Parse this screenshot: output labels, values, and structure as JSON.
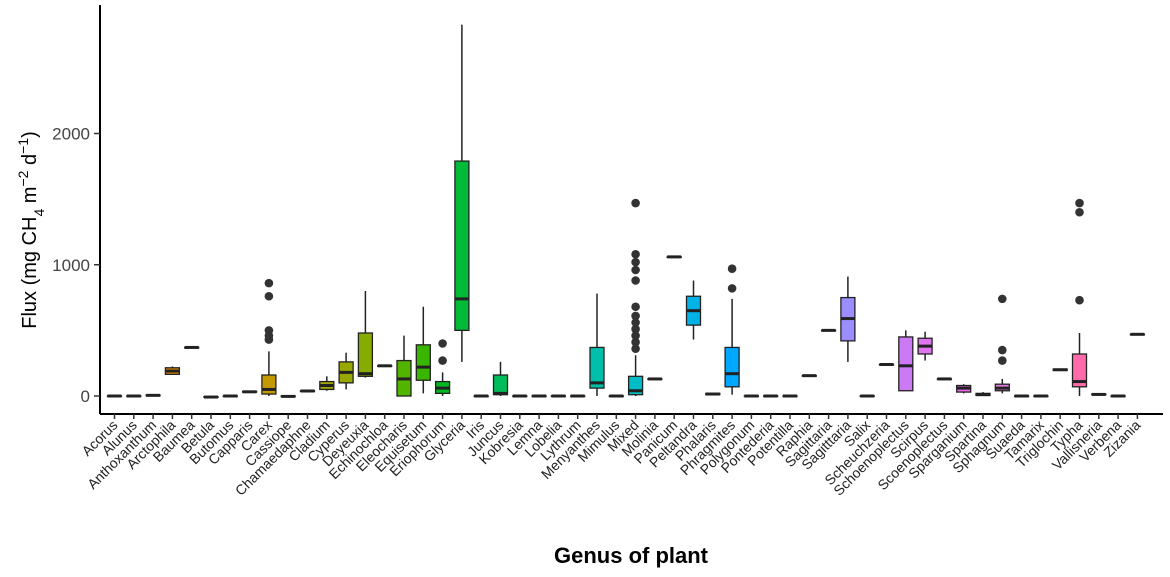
{
  "chart_data": {
    "type": "boxplot",
    "xlabel": "Genus of plant",
    "ylabel_parts": [
      "Flux (mg CH",
      "4",
      " m",
      "−2",
      " d",
      "−1",
      ")"
    ],
    "ylim": [
      -150,
      2900
    ],
    "yticks": [
      0,
      1000,
      2000
    ],
    "grid": false,
    "legend": "none",
    "boxes": [
      {
        "category": "Acorus",
        "min": 0,
        "q1": 0,
        "median": 0,
        "q3": 0,
        "max": 0,
        "outliers": [],
        "color": "#F8766D"
      },
      {
        "category": "Alunus",
        "min": 0,
        "q1": 0,
        "median": 0,
        "q3": 0,
        "max": 0,
        "outliers": [],
        "color": "#F27D52"
      },
      {
        "category": "Anthoxanthum",
        "min": 3,
        "q1": 3,
        "median": 5,
        "q3": 6,
        "max": 6,
        "outliers": [],
        "color": "#EA8331"
      },
      {
        "category": "Arctophila",
        "min": 160,
        "q1": 165,
        "median": 190,
        "q3": 215,
        "max": 225,
        "outliers": [],
        "color": "#E18A00"
      },
      {
        "category": "Baumea",
        "min": 370,
        "q1": 370,
        "median": 370,
        "q3": 370,
        "max": 370,
        "outliers": [],
        "color": "#D89000"
      },
      {
        "category": "Betula",
        "min": -10,
        "q1": -10,
        "median": -8,
        "q3": -5,
        "max": -5,
        "outliers": [],
        "color": "#CD9600"
      },
      {
        "category": "Butomus",
        "min": 0,
        "q1": 0,
        "median": 0,
        "q3": 0,
        "max": 0,
        "outliers": [],
        "color": "#C19C00"
      },
      {
        "category": "Capparis",
        "min": 30,
        "q1": 30,
        "median": 32,
        "q3": 35,
        "max": 35,
        "outliers": [],
        "color": "#B4A000"
      },
      {
        "category": "Carex",
        "min": 0,
        "q1": 15,
        "median": 50,
        "q3": 160,
        "max": 340,
        "outliers": [
          430,
          460,
          500,
          760,
          860
        ],
        "color": "#C49A00"
      },
      {
        "category": "Cassiope",
        "min": -5,
        "q1": -5,
        "median": -3,
        "q3": 0,
        "max": 0,
        "outliers": [],
        "color": "#A3A500"
      },
      {
        "category": "Chamaedaphne",
        "min": 35,
        "q1": 35,
        "median": 38,
        "q3": 40,
        "max": 40,
        "outliers": [],
        "color": "#95A900"
      },
      {
        "category": "Cladium",
        "min": 40,
        "q1": 50,
        "median": 80,
        "q3": 110,
        "max": 150,
        "outliers": [],
        "color": "#A3A500"
      },
      {
        "category": "Cyperus",
        "min": 50,
        "q1": 100,
        "median": 180,
        "q3": 260,
        "max": 330,
        "outliers": [],
        "color": "#99A800"
      },
      {
        "category": "Deyeuxia",
        "min": 140,
        "q1": 150,
        "median": 170,
        "q3": 480,
        "max": 800,
        "outliers": [],
        "color": "#86AC00"
      },
      {
        "category": "Echinochloa",
        "min": 230,
        "q1": 230,
        "median": 230,
        "q3": 230,
        "max": 230,
        "outliers": [],
        "color": "#6BB100"
      },
      {
        "category": "Eleocharis",
        "min": 0,
        "q1": 0,
        "median": 130,
        "q3": 270,
        "max": 460,
        "outliers": [],
        "color": "#53B400"
      },
      {
        "category": "Equisetum",
        "min": 20,
        "q1": 120,
        "median": 220,
        "q3": 390,
        "max": 680,
        "outliers": [],
        "color": "#39B600"
      },
      {
        "category": "Eriophorum",
        "min": 0,
        "q1": 20,
        "median": 60,
        "q3": 110,
        "max": 180,
        "outliers": [
          270,
          400
        ],
        "color": "#00B81F"
      },
      {
        "category": "Glyceria",
        "min": 260,
        "q1": 500,
        "median": 740,
        "q3": 1790,
        "max": 2830,
        "outliers": [],
        "color": "#00BA38"
      },
      {
        "category": "Iris",
        "min": 0,
        "q1": 0,
        "median": 0,
        "q3": 0,
        "max": 0,
        "outliers": [],
        "color": "#00BB4E"
      },
      {
        "category": "Juncus",
        "min": 0,
        "q1": 10,
        "median": 20,
        "q3": 160,
        "max": 260,
        "outliers": [],
        "color": "#00BC59"
      },
      {
        "category": "Kobresia",
        "min": 0,
        "q1": 0,
        "median": 0,
        "q3": 0,
        "max": 0,
        "outliers": [],
        "color": "#00BE6C"
      },
      {
        "category": "Lemna",
        "min": 0,
        "q1": 0,
        "median": 0,
        "q3": 0,
        "max": 0,
        "outliers": [],
        "color": "#00BF7D"
      },
      {
        "category": "Lobelia",
        "min": 0,
        "q1": 0,
        "median": 0,
        "q3": 0,
        "max": 0,
        "outliers": [],
        "color": "#00C08B"
      },
      {
        "category": "Lythrum",
        "min": 0,
        "q1": 0,
        "median": 0,
        "q3": 0,
        "max": 0,
        "outliers": [],
        "color": "#00C19A"
      },
      {
        "category": "Menyanthes",
        "min": 0,
        "q1": 60,
        "median": 100,
        "q3": 370,
        "max": 780,
        "outliers": [],
        "color": "#00BFAA"
      },
      {
        "category": "Mimulus",
        "min": 0,
        "q1": 0,
        "median": 0,
        "q3": 0,
        "max": 0,
        "outliers": [],
        "color": "#00BFB8"
      },
      {
        "category": "Mixed",
        "min": 0,
        "q1": 10,
        "median": 40,
        "q3": 150,
        "max": 310,
        "outliers": [
          360,
          410,
          460,
          510,
          560,
          610,
          680,
          880,
          960,
          1020,
          1080,
          1470
        ],
        "color": "#00BCC4"
      },
      {
        "category": "Molinia",
        "min": 130,
        "q1": 130,
        "median": 130,
        "q3": 130,
        "max": 130,
        "outliers": [],
        "color": "#00BAD0"
      },
      {
        "category": "Panicum",
        "min": 1060,
        "q1": 1060,
        "median": 1060,
        "q3": 1060,
        "max": 1060,
        "outliers": [],
        "color": "#00B6DB"
      },
      {
        "category": "Peltandra",
        "min": 430,
        "q1": 540,
        "median": 650,
        "q3": 760,
        "max": 880,
        "outliers": [],
        "color": "#00B2E5"
      },
      {
        "category": "Phalaris",
        "min": 10,
        "q1": 10,
        "median": 15,
        "q3": 20,
        "max": 20,
        "outliers": [],
        "color": "#00ADEE"
      },
      {
        "category": "Phragmites",
        "min": 10,
        "q1": 70,
        "median": 170,
        "q3": 370,
        "max": 740,
        "outliers": [
          820,
          970
        ],
        "color": "#00A9FF"
      },
      {
        "category": "Polygonum",
        "min": 0,
        "q1": 0,
        "median": 0,
        "q3": 0,
        "max": 0,
        "outliers": [],
        "color": "#29A3FF"
      },
      {
        "category": "Pontederia",
        "min": 0,
        "q1": 0,
        "median": 0,
        "q3": 0,
        "max": 0,
        "outliers": [],
        "color": "#619CFF"
      },
      {
        "category": "Potentilla",
        "min": 0,
        "q1": 0,
        "median": 0,
        "q3": 0,
        "max": 0,
        "outliers": [],
        "color": "#7F96FF"
      },
      {
        "category": "Raphia",
        "min": 155,
        "q1": 155,
        "median": 155,
        "q3": 155,
        "max": 155,
        "outliers": [],
        "color": "#9590FF"
      },
      {
        "category": "Sagittaria",
        "min": 500,
        "q1": 500,
        "median": 500,
        "q3": 500,
        "max": 500,
        "outliers": [],
        "color": "#A68AFF"
      },
      {
        "category": "Sagitttaria",
        "min": 260,
        "q1": 420,
        "median": 590,
        "q3": 750,
        "max": 910,
        "outliers": [],
        "color": "#9C8DFF"
      },
      {
        "category": "Salix",
        "min": 0,
        "q1": 0,
        "median": 0,
        "q3": 0,
        "max": 0,
        "outliers": [],
        "color": "#C77CFF"
      },
      {
        "category": "Scheuchzeria",
        "min": 240,
        "q1": 240,
        "median": 240,
        "q3": 240,
        "max": 240,
        "outliers": [],
        "color": "#D277FA"
      },
      {
        "category": "Schoenoplectus",
        "min": 40,
        "q1": 40,
        "median": 230,
        "q3": 450,
        "max": 500,
        "outliers": [],
        "color": "#CC79F5"
      },
      {
        "category": "Scirpus",
        "min": 270,
        "q1": 320,
        "median": 380,
        "q3": 440,
        "max": 490,
        "outliers": [],
        "color": "#E075F0"
      },
      {
        "category": "Scoenoplectus",
        "min": 130,
        "q1": 130,
        "median": 130,
        "q3": 130,
        "max": 130,
        "outliers": [],
        "color": "#E76BF3"
      },
      {
        "category": "Sparganium",
        "min": 20,
        "q1": 30,
        "median": 60,
        "q3": 80,
        "max": 90,
        "outliers": [],
        "color": "#EC69EF"
      },
      {
        "category": "Spartina",
        "min": 0,
        "q1": 5,
        "median": 10,
        "q3": 20,
        "max": 30,
        "outliers": [],
        "color": "#F066EA"
      },
      {
        "category": "Sphagnum",
        "min": 20,
        "q1": 40,
        "median": 60,
        "q3": 90,
        "max": 130,
        "outliers": [
          270,
          350,
          740
        ],
        "color": "#E079E0"
      },
      {
        "category": "Suaeda",
        "min": 0,
        "q1": 0,
        "median": 0,
        "q3": 0,
        "max": 0,
        "outliers": [],
        "color": "#F763E0"
      },
      {
        "category": "Tamarix",
        "min": 0,
        "q1": 0,
        "median": 0,
        "q3": 0,
        "max": 0,
        "outliers": [],
        "color": "#FA62D5"
      },
      {
        "category": "Triglochin",
        "min": 195,
        "q1": 195,
        "median": 200,
        "q3": 205,
        "max": 205,
        "outliers": [],
        "color": "#FD61D1"
      },
      {
        "category": "Typha",
        "min": 0,
        "q1": 70,
        "median": 110,
        "q3": 320,
        "max": 480,
        "outliers": [
          730,
          1400,
          1470
        ],
        "color": "#FF6BA8"
      },
      {
        "category": "Vallisneria",
        "min": 10,
        "q1": 10,
        "median": 12,
        "q3": 15,
        "max": 15,
        "outliers": [],
        "color": "#FF65AC"
      },
      {
        "category": "Verbena",
        "min": 0,
        "q1": 0,
        "median": 0,
        "q3": 0,
        "max": 0,
        "outliers": [],
        "color": "#FF6A98"
      },
      {
        "category": "Zizania",
        "min": 470,
        "q1": 470,
        "median": 470,
        "q3": 470,
        "max": 470,
        "outliers": [],
        "color": "#FF6C91"
      }
    ]
  }
}
